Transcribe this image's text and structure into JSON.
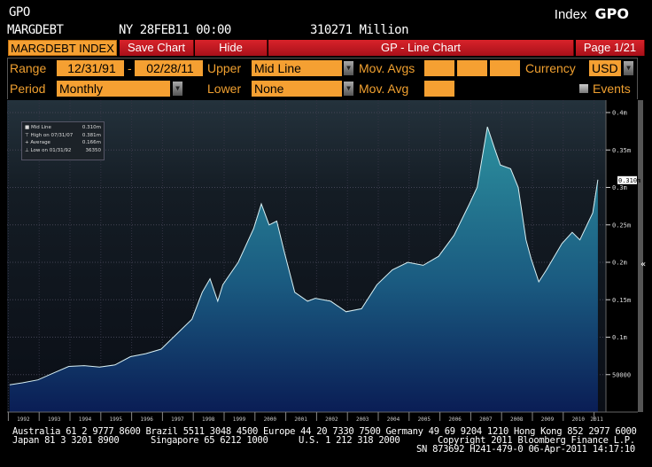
{
  "header": {
    "code": "GPO",
    "index_label": "Index",
    "index_code": "GPO",
    "ticker": "MARGDEBT",
    "location_time": "NY 28FEB11 00:00",
    "last_value": "310271 Million"
  },
  "tabs": {
    "security": "MARGDEBT INDEX",
    "save": "Save Chart",
    "hide": "Hide",
    "title": "GP - Line Chart",
    "page": "Page 1/21"
  },
  "controls": {
    "range_label": "Range",
    "range_start": "12/31/91",
    "range_sep": "-",
    "range_end": "02/28/11",
    "upper_label": "Upper",
    "upper_value": "Mid Line",
    "movavgs_label": "Mov. Avgs",
    "currency_label": "Currency",
    "currency_value": "USD",
    "period_label": "Period",
    "period_value": "Monthly",
    "lower_label": "Lower",
    "lower_value": "None",
    "movavg_label": "Mov. Avg",
    "events_label": "Events"
  },
  "legend": [
    {
      "label": "Mid Line",
      "value": "0.310m"
    },
    {
      "label": "High on 07/31/07",
      "value": "0.381m"
    },
    {
      "label": "Average",
      "value": "0.166m"
    },
    {
      "label": "Low on 01/31/92",
      "value": "36350"
    }
  ],
  "colors": {
    "orange": "#f5a032",
    "red": "#d8232a",
    "fill_top": "#2b8c9c",
    "fill_bottom": "#0a1d55",
    "line": "#d8f0f4"
  },
  "chart_data": {
    "type": "area",
    "ylim": [
      0,
      400000
    ],
    "y_ticks": [
      {
        "v": 50000,
        "label": "50000"
      },
      {
        "v": 100000,
        "label": "0.1m"
      },
      {
        "v": 150000,
        "label": "0.15m"
      },
      {
        "v": 200000,
        "label": "0.2m"
      },
      {
        "v": 250000,
        "label": "0.25m"
      },
      {
        "v": 300000,
        "label": "0.3m"
      },
      {
        "v": 350000,
        "label": "0.35m"
      },
      {
        "v": 400000,
        "label": "0.4m"
      }
    ],
    "last_label": "0.310m",
    "x_ticks": [
      "1992",
      "1993",
      "1994",
      "1995",
      "1996",
      "1997",
      "1998",
      "1999",
      "2000",
      "2001",
      "2002",
      "2003",
      "2004",
      "2005",
      "2006",
      "2007",
      "2008",
      "2009",
      "2010",
      "2011"
    ],
    "series": [
      {
        "points": [
          [
            "1992-01",
            36350
          ],
          [
            "1992-06",
            39000
          ],
          [
            "1992-12",
            43000
          ],
          [
            "1993-06",
            52000
          ],
          [
            "1993-12",
            61000
          ],
          [
            "1994-06",
            62000
          ],
          [
            "1994-12",
            60000
          ],
          [
            "1995-06",
            63000
          ],
          [
            "1995-12",
            74000
          ],
          [
            "1996-06",
            78000
          ],
          [
            "1996-12",
            84000
          ],
          [
            "1997-06",
            104000
          ],
          [
            "1997-12",
            124000
          ],
          [
            "1998-04",
            160000
          ],
          [
            "1998-07",
            178000
          ],
          [
            "1998-10",
            148000
          ],
          [
            "1998-12",
            170000
          ],
          [
            "1999-06",
            200000
          ],
          [
            "1999-12",
            245000
          ],
          [
            "2000-03",
            278000
          ],
          [
            "2000-06",
            250000
          ],
          [
            "2000-09",
            255000
          ],
          [
            "2000-12",
            213000
          ],
          [
            "2001-04",
            160000
          ],
          [
            "2001-09",
            148000
          ],
          [
            "2001-12",
            152000
          ],
          [
            "2002-06",
            148000
          ],
          [
            "2002-12",
            134000
          ],
          [
            "2003-06",
            138000
          ],
          [
            "2003-12",
            170000
          ],
          [
            "2004-06",
            190000
          ],
          [
            "2004-12",
            200000
          ],
          [
            "2005-06",
            196000
          ],
          [
            "2005-12",
            208000
          ],
          [
            "2006-06",
            236000
          ],
          [
            "2006-12",
            278000
          ],
          [
            "2007-03",
            300000
          ],
          [
            "2007-07",
            381000
          ],
          [
            "2007-10",
            350000
          ],
          [
            "2007-12",
            330000
          ],
          [
            "2008-04",
            325000
          ],
          [
            "2008-07",
            300000
          ],
          [
            "2008-10",
            230000
          ],
          [
            "2008-12",
            205000
          ],
          [
            "2009-03",
            174000
          ],
          [
            "2009-06",
            190000
          ],
          [
            "2009-12",
            225000
          ],
          [
            "2010-04",
            240000
          ],
          [
            "2010-07",
            230000
          ],
          [
            "2010-12",
            266000
          ],
          [
            "2011-02",
            310271
          ]
        ]
      }
    ]
  },
  "footer": {
    "line1": "Australia 61 2 9777 8600 Brazil 5511 3048 4500 Europe 44 20 7330 7500 Germany 49 69 9204 1210 Hong Kong 852 2977 6000",
    "japan": "Japan 81 3 3201 8900",
    "singapore": "Singapore 65 6212 1000",
    "us": "U.S. 1 212 318 2000",
    "copyright": "Copyright 2011 Bloomberg Finance L.P.",
    "line3": "SN 873692 H241-479-0 06-Apr-2011 14:17:10"
  }
}
